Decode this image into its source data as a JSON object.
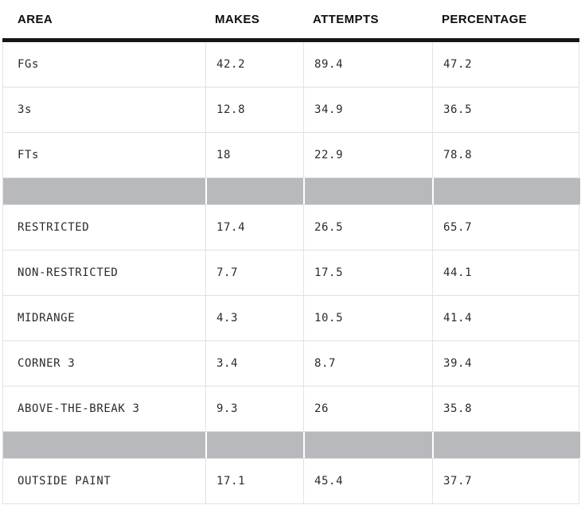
{
  "table": {
    "columns": [
      "AREA",
      "MAKES",
      "ATTEMPTS",
      "PERCENTAGE"
    ],
    "rows": [
      {
        "area": "FGs",
        "makes": "42.2",
        "attempts": "89.4",
        "percentage": "47.2"
      },
      {
        "area": "3s",
        "makes": "12.8",
        "attempts": "34.9",
        "percentage": "36.5"
      },
      {
        "area": "FTs",
        "makes": "18",
        "attempts": "22.9",
        "percentage": "78.8"
      },
      {
        "area": "RESTRICTED",
        "makes": "17.4",
        "attempts": "26.5",
        "percentage": "65.7"
      },
      {
        "area": "NON-RESTRICTED",
        "makes": "7.7",
        "attempts": "17.5",
        "percentage": "44.1"
      },
      {
        "area": "MIDRANGE",
        "makes": "4.3",
        "attempts": "10.5",
        "percentage": "41.4"
      },
      {
        "area": "CORNER 3",
        "makes": "3.4",
        "attempts": "8.7",
        "percentage": "39.4"
      },
      {
        "area": "ABOVE-THE-BREAK 3",
        "makes": "9.3",
        "attempts": "26",
        "percentage": "35.8"
      },
      {
        "area": "OUTSIDE PAINT",
        "makes": "17.1",
        "attempts": "45.4",
        "percentage": "37.7"
      }
    ],
    "colors": {
      "separator_band": "#b7b9bc",
      "header_rule": "#161616",
      "row_divider": "#e0e0e0",
      "text": "#2b2b2b"
    }
  },
  "chart_data": {
    "type": "table",
    "title": "",
    "columns": [
      "AREA",
      "MAKES",
      "ATTEMPTS",
      "PERCENTAGE"
    ],
    "sections": [
      {
        "rows": [
          {
            "area": "FGs",
            "makes": 42.2,
            "attempts": 89.4,
            "percentage": 47.2
          },
          {
            "area": "3s",
            "makes": 12.8,
            "attempts": 34.9,
            "percentage": 36.5
          },
          {
            "area": "FTs",
            "makes": 18,
            "attempts": 22.9,
            "percentage": 78.8
          }
        ]
      },
      {
        "rows": [
          {
            "area": "RESTRICTED",
            "makes": 17.4,
            "attempts": 26.5,
            "percentage": 65.7
          },
          {
            "area": "NON-RESTRICTED",
            "makes": 7.7,
            "attempts": 17.5,
            "percentage": 44.1
          },
          {
            "area": "MIDRANGE",
            "makes": 4.3,
            "attempts": 10.5,
            "percentage": 41.4
          },
          {
            "area": "CORNER 3",
            "makes": 3.4,
            "attempts": 8.7,
            "percentage": 39.4
          },
          {
            "area": "ABOVE-THE-BREAK 3",
            "makes": 9.3,
            "attempts": 26,
            "percentage": 35.8
          }
        ]
      },
      {
        "rows": [
          {
            "area": "OUTSIDE PAINT",
            "makes": 17.1,
            "attempts": 45.4,
            "percentage": 37.7
          }
        ]
      }
    ]
  }
}
